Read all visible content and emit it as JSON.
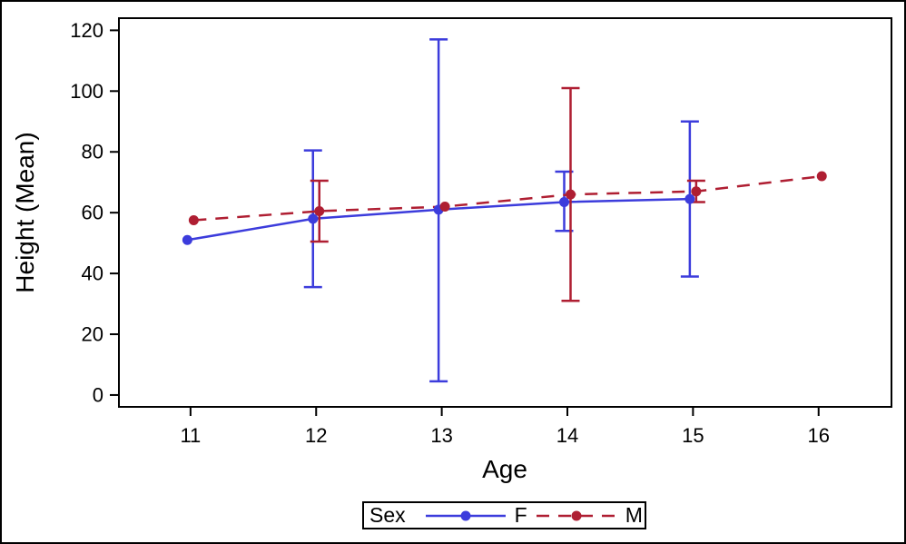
{
  "chart_data": {
    "type": "line",
    "title": "",
    "xlabel": "Age",
    "ylabel": "Height (Mean)",
    "x_ticks": [
      11,
      12,
      13,
      14,
      15,
      16
    ],
    "y_ticks": [
      0,
      20,
      40,
      60,
      80,
      100,
      120
    ],
    "xlim": [
      10.43,
      16.58
    ],
    "ylim": [
      -3.9,
      124
    ],
    "grid": false,
    "error_bars": "vertical-limit-bars-with-caps",
    "legend": {
      "title": "Sex",
      "position": "bottom-center",
      "border": true
    },
    "colors": {
      "axis": "#000000",
      "frame": "#000000",
      "background": "#ffffff"
    },
    "series": [
      {
        "name": "F",
        "color": "#3C3CDC",
        "line_style": "solid",
        "marker": "filled-circle",
        "x": [
          11,
          12,
          13,
          14,
          15
        ],
        "y": [
          51,
          58,
          61,
          63.5,
          64.5
        ],
        "y_low": [
          null,
          35.5,
          4.5,
          54,
          39
        ],
        "y_high": [
          null,
          80.5,
          117,
          73.5,
          90
        ]
      },
      {
        "name": "M",
        "color": "#AF1E32",
        "line_style": "dashed",
        "marker": "filled-circle",
        "x": [
          11,
          12,
          13,
          14,
          15,
          16
        ],
        "y": [
          57.5,
          60.5,
          62,
          66,
          67,
          72
        ],
        "y_low": [
          null,
          50.5,
          null,
          31,
          63.5,
          null
        ],
        "y_high": [
          null,
          70.5,
          null,
          101,
          70.5,
          null
        ]
      }
    ]
  }
}
